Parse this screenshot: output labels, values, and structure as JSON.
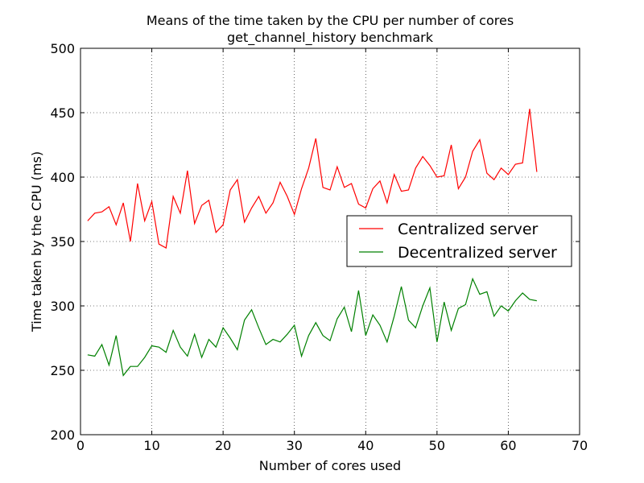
{
  "chart_data": {
    "type": "line",
    "title": "Means of the time taken by the CPU per number of cores",
    "subtitle": "get_channel_history benchmark",
    "xlabel": "Number of cores used",
    "ylabel": "Time taken by the CPU (ms)",
    "xlim": [
      0,
      70
    ],
    "ylim": [
      200,
      500
    ],
    "x_ticks": [
      0,
      10,
      20,
      30,
      40,
      50,
      60,
      70
    ],
    "y_ticks": [
      200,
      250,
      300,
      350,
      400,
      450,
      500
    ],
    "grid": true,
    "legend_position": "right",
    "x": [
      1,
      2,
      3,
      4,
      5,
      6,
      7,
      8,
      9,
      10,
      11,
      12,
      13,
      14,
      15,
      16,
      17,
      18,
      19,
      20,
      21,
      22,
      23,
      24,
      25,
      26,
      27,
      28,
      29,
      30,
      31,
      32,
      33,
      34,
      35,
      36,
      37,
      38,
      39,
      40,
      41,
      42,
      43,
      44,
      45,
      46,
      47,
      48,
      49,
      50,
      51,
      52,
      53,
      54,
      55,
      56,
      57,
      58,
      59,
      60,
      61,
      62,
      63,
      64
    ],
    "series": [
      {
        "name": "Centralized server",
        "color": "#ff0000",
        "values": [
          366,
          372,
          373,
          377,
          363,
          380,
          350,
          395,
          366,
          381,
          348,
          345,
          385,
          372,
          405,
          364,
          378,
          382,
          357,
          363,
          390,
          398,
          365,
          376,
          385,
          372,
          380,
          396,
          385,
          371,
          391,
          407,
          430,
          392,
          390,
          408,
          392,
          395,
          379,
          376,
          391,
          397,
          380,
          402,
          389,
          390,
          407,
          416,
          409,
          400,
          401,
          425,
          391,
          400,
          420,
          429,
          403,
          398,
          407,
          402,
          410,
          411,
          453,
          404
        ]
      },
      {
        "name": "Decentralized server",
        "color": "#008000",
        "values": [
          262,
          261,
          270,
          254,
          277,
          246,
          253,
          253,
          260,
          269,
          268,
          264,
          281,
          268,
          261,
          278,
          260,
          274,
          268,
          283,
          275,
          266,
          289,
          297,
          283,
          270,
          274,
          272,
          278,
          285,
          261,
          277,
          287,
          277,
          273,
          290,
          299,
          280,
          312,
          277,
          293,
          285,
          272,
          292,
          315,
          289,
          283,
          300,
          314,
          272,
          303,
          281,
          298,
          301,
          321,
          309,
          311,
          292,
          300,
          296,
          304,
          310,
          305,
          304
        ]
      }
    ]
  }
}
